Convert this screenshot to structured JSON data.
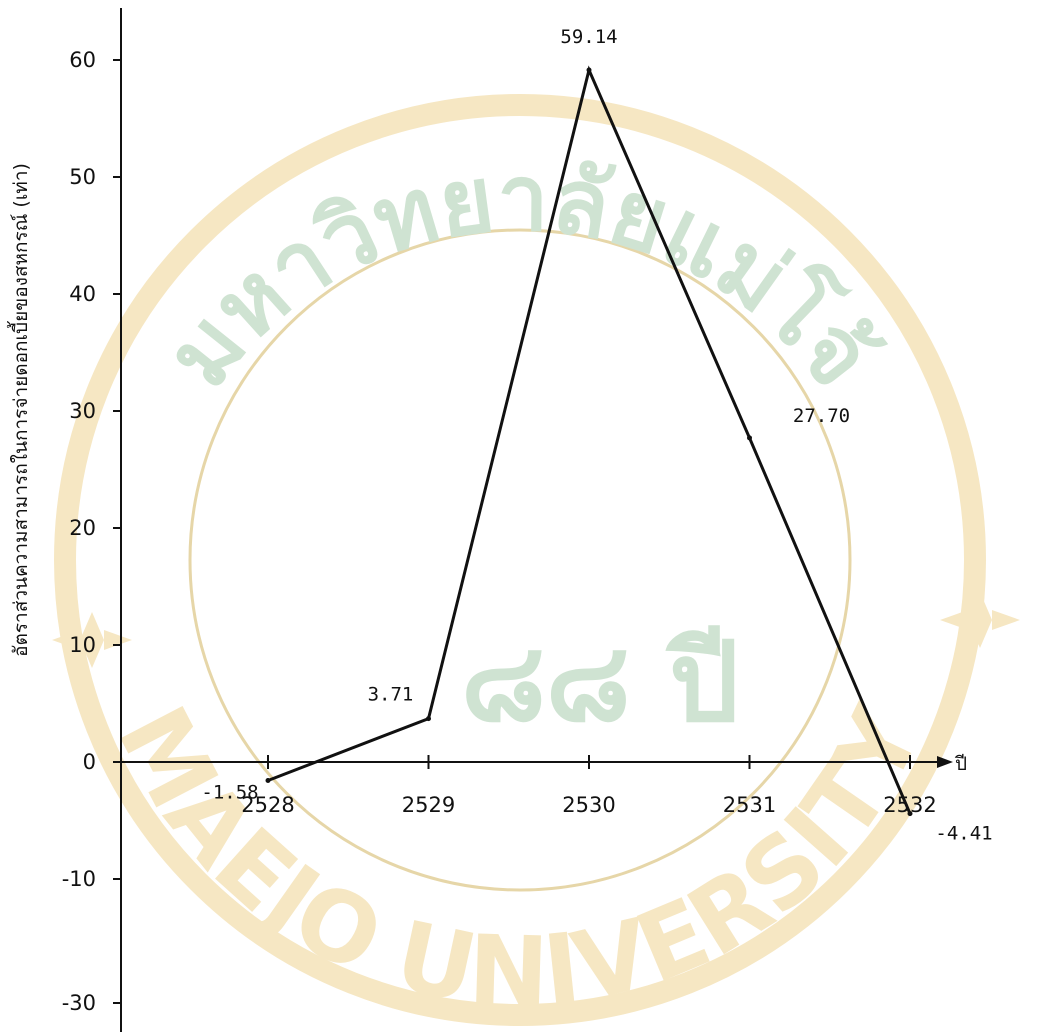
{
  "watermark": {
    "arc_text_top": "มหาวิทยาลัยแม่โจ้",
    "arc_text_bottom": "MAEJO UNIVERSITY",
    "center_text": "๘๘ ปี",
    "colors": {
      "green": "#cfe3d2",
      "gold": "#f6e7c3",
      "outline": "#e6d6a8"
    }
  },
  "chart_data": {
    "type": "line",
    "title": "",
    "xlabel": "ปี",
    "ylabel": "อัตราส่วนความสามารถในการจ่ายดอกเบี้ยของสหกรณ์ (เท่า)",
    "x": [
      "2528",
      "2529",
      "2530",
      "2531",
      "2532"
    ],
    "series": [
      {
        "values": [
          -1.58,
          3.71,
          59.14,
          27.7,
          -4.41
        ]
      }
    ],
    "data_labels": [
      "-1.58",
      "3.71",
      "59.14",
      "27.70",
      "-4.41"
    ],
    "y_ticks": [
      60,
      50,
      40,
      30,
      20,
      10,
      0,
      -10,
      -30
    ],
    "y_tick_labels": [
      "60",
      "50",
      "40",
      "30",
      "20",
      "10",
      "0",
      "-10",
      "-30"
    ],
    "grid": false,
    "line_color": "#111111"
  }
}
